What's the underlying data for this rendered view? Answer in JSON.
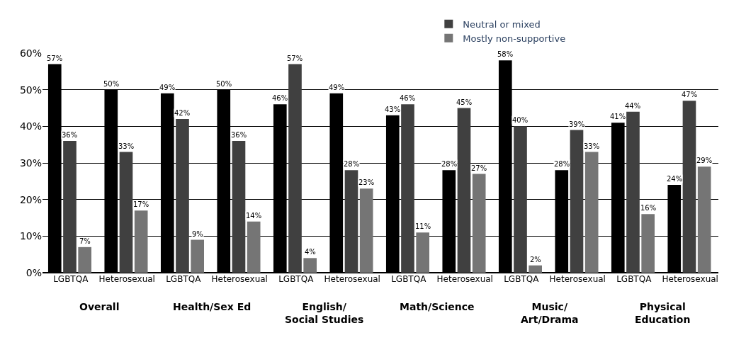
{
  "chart_data": {
    "type": "bar",
    "categories": [
      "LGBTQA",
      "Heterosexual",
      "LGBTQA",
      "Heterosexual",
      "LGBTQA",
      "Heterosexual",
      "LGBTQA",
      "Heterosexual",
      "LGBTQA",
      "Heterosexual",
      "LGBTQA",
      "Heterosexual"
    ],
    "series": [
      {
        "color": "#000000",
        "values": [
          57,
          50,
          49,
          50,
          46,
          49,
          43,
          28,
          58,
          28,
          41,
          24
        ],
        "value_labels": [
          "57%",
          "50%",
          "49%",
          "50%",
          "46%",
          "49%",
          "43%",
          "28%",
          "58%",
          "28%",
          "41%",
          "24%"
        ]
      },
      {
        "name": "Neutral or mixed",
        "color": "#404040",
        "values": [
          36,
          33,
          42,
          36,
          57,
          28,
          46,
          45,
          40,
          39,
          44,
          47
        ],
        "value_labels": [
          "36%",
          "33%",
          "42%",
          "36%",
          "57%",
          "28%",
          "46%",
          "45%",
          "40%",
          "39%",
          "44%",
          "47%"
        ]
      },
      {
        "name": "Mostly non-supportive",
        "color": "#757575",
        "values": [
          7,
          17,
          9,
          14,
          4,
          23,
          11,
          27,
          2,
          33,
          16,
          29
        ],
        "value_labels": [
          "7%",
          "17%",
          "9%",
          "14%",
          "4%",
          "23%",
          "11%",
          "27%",
          "2%",
          "33%",
          "16%",
          "29%"
        ]
      }
    ],
    "annotations": [
      "Overall",
      "Health/Sex Ed",
      "English/\nSocial Studies",
      "Math/Science",
      "Music/\nArt/Drama",
      "Physical\nEducation"
    ],
    "ylim": [
      0,
      60
    ],
    "yticks": [
      {
        "value": 0,
        "label": "0%"
      },
      {
        "value": 10,
        "label": "10%"
      },
      {
        "value": 20,
        "label": "20%"
      },
      {
        "value": 30,
        "label": "30%"
      },
      {
        "value": 40,
        "label": "40%"
      },
      {
        "value": 50,
        "label": "50%"
      },
      {
        "value": 60,
        "label": "60%"
      }
    ],
    "grid": "y",
    "legend": "top"
  }
}
